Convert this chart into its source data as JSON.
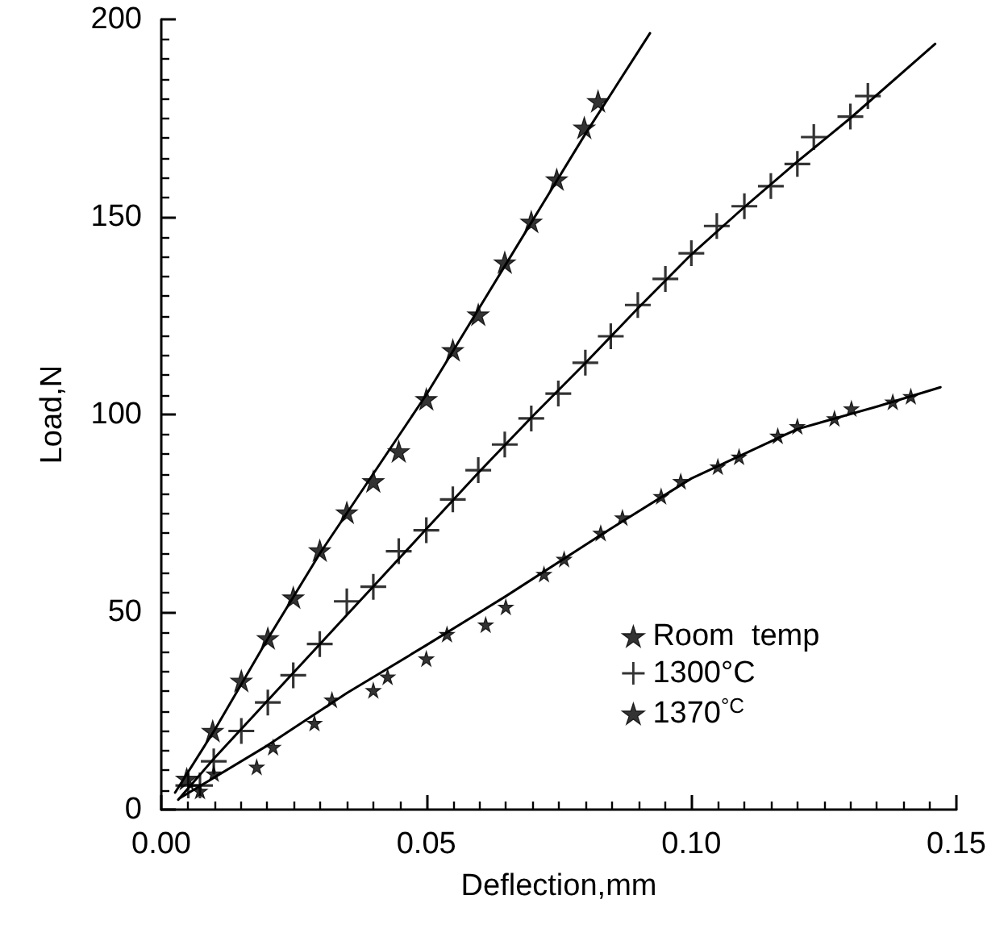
{
  "chart_data": {
    "type": "scatter",
    "xlabel": "Deflection,mm",
    "ylabel": "Load,N",
    "xlim": [
      0,
      0.15
    ],
    "ylim": [
      0,
      200
    ],
    "xticks": [
      {
        "value": 0,
        "label": "0.00"
      },
      {
        "value": 0.05,
        "label": "0.05"
      },
      {
        "value": 0.1,
        "label": "0.10"
      },
      {
        "value": 0.15,
        "label": "0.15"
      },
      {
        "value": 0.005,
        "label": null
      },
      {
        "value": 0.01,
        "label": null
      },
      {
        "value": 0.015,
        "label": null
      },
      {
        "value": 0.02,
        "label": null
      },
      {
        "value": 0.025,
        "label": null
      },
      {
        "value": 0.03,
        "label": null
      },
      {
        "value": 0.035,
        "label": null
      },
      {
        "value": 0.04,
        "label": null
      },
      {
        "value": 0.045,
        "label": null
      },
      {
        "value": 0.055,
        "label": null
      },
      {
        "value": 0.06,
        "label": null
      },
      {
        "value": 0.065,
        "label": null
      },
      {
        "value": 0.07,
        "label": null
      },
      {
        "value": 0.075,
        "label": null
      },
      {
        "value": 0.08,
        "label": null
      },
      {
        "value": 0.085,
        "label": null
      },
      {
        "value": 0.09,
        "label": null
      },
      {
        "value": 0.095,
        "label": null
      },
      {
        "value": 0.105,
        "label": null
      },
      {
        "value": 0.11,
        "label": null
      },
      {
        "value": 0.115,
        "label": null
      },
      {
        "value": 0.12,
        "label": null
      },
      {
        "value": 0.125,
        "label": null
      },
      {
        "value": 0.13,
        "label": null
      },
      {
        "value": 0.135,
        "label": null
      },
      {
        "value": 0.14,
        "label": null
      },
      {
        "value": 0.145,
        "label": null
      }
    ],
    "yticks": [
      0,
      50,
      100,
      150,
      200,
      {
        "value": 5,
        "label": null
      },
      {
        "value": 10,
        "label": null
      },
      {
        "value": 15,
        "label": null
      },
      {
        "value": 20,
        "label": null
      },
      {
        "value": 25,
        "label": null
      },
      {
        "value": 30,
        "label": null
      },
      {
        "value": 35,
        "label": null
      },
      {
        "value": 40,
        "label": null
      },
      {
        "value": 45,
        "label": null
      },
      {
        "value": 55,
        "label": null
      },
      {
        "value": 60,
        "label": null
      },
      {
        "value": 65,
        "label": null
      },
      {
        "value": 70,
        "label": null
      },
      {
        "value": 75,
        "label": null
      },
      {
        "value": 80,
        "label": null
      },
      {
        "value": 85,
        "label": null
      },
      {
        "value": 90,
        "label": null
      },
      {
        "value": 95,
        "label": null
      },
      {
        "value": 105,
        "label": null
      },
      {
        "value": 110,
        "label": null
      },
      {
        "value": 115,
        "label": null
      },
      {
        "value": 120,
        "label": null
      },
      {
        "value": 125,
        "label": null
      },
      {
        "value": 130,
        "label": null
      },
      {
        "value": 135,
        "label": null
      },
      {
        "value": 140,
        "label": null
      },
      {
        "value": 145,
        "label": null
      },
      {
        "value": 155,
        "label": null
      },
      {
        "value": 160,
        "label": null
      },
      {
        "value": 165,
        "label": null
      },
      {
        "value": 170,
        "label": null
      },
      {
        "value": 175,
        "label": null
      },
      {
        "value": 180,
        "label": null
      },
      {
        "value": 185,
        "label": null
      },
      {
        "value": 190,
        "label": null
      },
      {
        "value": 195,
        "label": null
      }
    ],
    "grid": false,
    "legend": "bottom right",
    "series": [
      {
        "name": "Room  temp",
        "type": "scatter",
        "marker": "star",
        "color": "#000000",
        "x": [
          0.0048,
          0.0097,
          0.0151,
          0.0201,
          0.0249,
          0.0299,
          0.035,
          0.04,
          0.0448,
          0.05,
          0.055,
          0.0598,
          0.0648,
          0.0698,
          0.0746,
          0.0798,
          0.0824
        ],
        "values": [
          7.8,
          19.9,
          32.6,
          43.4,
          53.7,
          65.6,
          75.2,
          83.1,
          90.7,
          103.9,
          116.3,
          125.3,
          138.5,
          148.8,
          159.5,
          172.6,
          179.3
        ]
      },
      {
        "name": "1300°C",
        "type": "scatter",
        "marker": "cross",
        "color": "#000000",
        "x": [
          0.0051,
          0.0073,
          0.0099,
          0.0151,
          0.0201,
          0.0249,
          0.0299,
          0.035,
          0.04,
          0.0448,
          0.05,
          0.055,
          0.0598,
          0.0648,
          0.0698,
          0.0749,
          0.08,
          0.0848,
          0.0899,
          0.0951,
          0.1,
          0.1048,
          0.11,
          0.115,
          0.12,
          0.1231,
          0.13,
          0.1333
        ],
        "values": [
          6.1,
          6.1,
          12.2,
          19.9,
          27.1,
          34,
          41.9,
          52.7,
          56.4,
          65.4,
          70.7,
          78.5,
          85.9,
          92.4,
          99,
          105.3,
          113.1,
          119.8,
          127.7,
          134.3,
          140.8,
          147.7,
          152.7,
          157.8,
          163.4,
          170.2,
          175.4,
          180.6
        ]
      },
      {
        "name": "1370$^{°C}$",
        "type": "scatter",
        "marker": "star",
        "color": "#000000",
        "x": [
          0.0073,
          0.0099,
          0.018,
          0.0211,
          0.0289,
          0.0322,
          0.04,
          0.0427,
          0.05,
          0.0539,
          0.0612,
          0.065,
          0.0722,
          0.076,
          0.0829,
          0.087,
          0.0943,
          0.098,
          0.105,
          0.109,
          0.1163,
          0.12,
          0.127,
          0.1302,
          0.138,
          0.1414
        ],
        "values": [
          4.7,
          9.1,
          10.8,
          15.8,
          21.9,
          27.8,
          30.2,
          33.6,
          38.2,
          44.4,
          46.8,
          51.3,
          59.6,
          63.4,
          70,
          73.9,
          79.3,
          83.1,
          86.8,
          89.3,
          94.6,
          97,
          99,
          101.5,
          103.2,
          104.6
        ]
      },
      {
        "type": "line",
        "marker": "none",
        "color": "#000000",
        "x": [
          0.0026,
          0.01,
          0.02,
          0.03,
          0.04,
          0.05,
          0.06,
          0.07,
          0.08,
          0.0922
        ],
        "values": [
          4.3,
          20,
          43,
          65,
          85,
          105,
          127,
          149,
          171,
          196.5
        ]
      },
      {
        "type": "line",
        "marker": "none",
        "color": "#000000",
        "x": [
          0.0032,
          0.01,
          0.02,
          0.03,
          0.04,
          0.05,
          0.06,
          0.07,
          0.08,
          0.09,
          0.1,
          0.11,
          0.12,
          0.13,
          0.146
        ],
        "values": [
          2.5,
          13,
          27.5,
          42,
          56.5,
          71,
          85.5,
          99.5,
          113,
          127,
          140.5,
          152.5,
          164,
          175,
          193.8
        ]
      },
      {
        "type": "line",
        "marker": "none",
        "color": "#000000",
        "x": [
          0.0035,
          0.02,
          0.035,
          0.05,
          0.065,
          0.0829,
          0.1,
          0.12,
          0.135,
          0.147
        ],
        "values": [
          2.9,
          16.2,
          29.5,
          41.6,
          54,
          69.5,
          83.8,
          96.3,
          102,
          106.9
        ]
      }
    ]
  }
}
